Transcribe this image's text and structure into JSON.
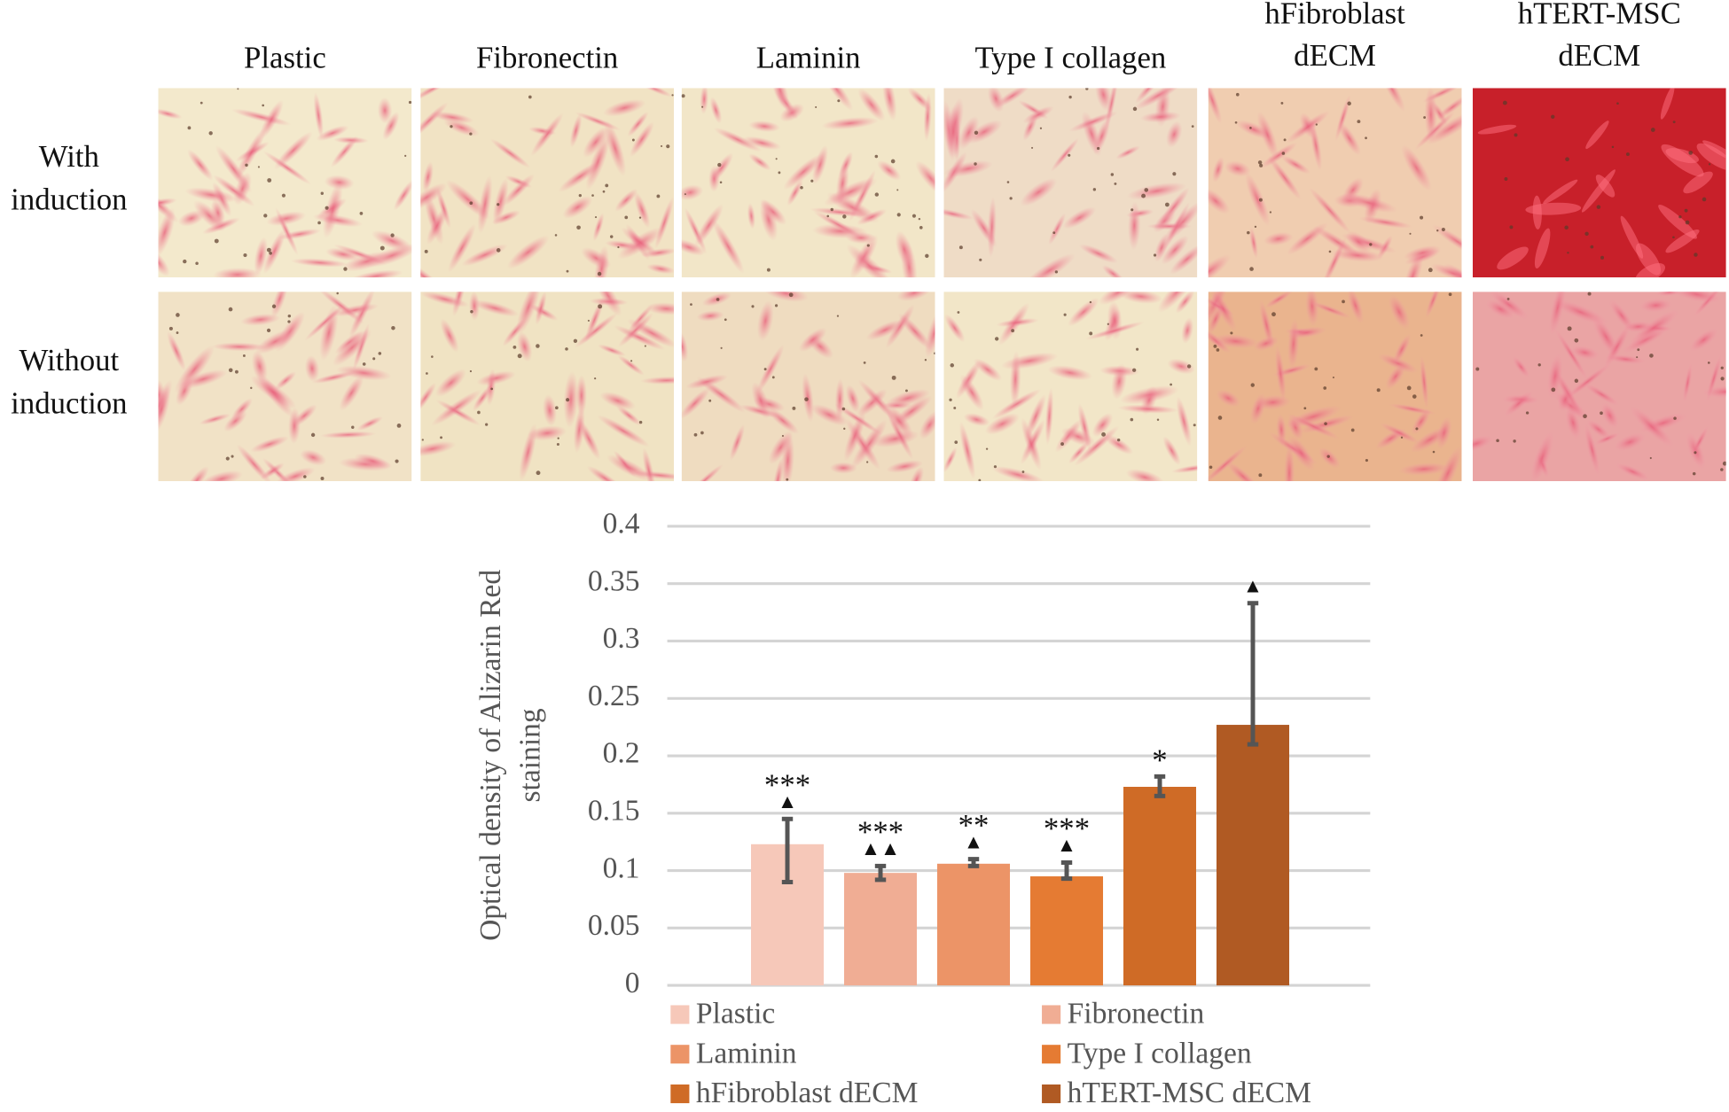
{
  "panels": {
    "columns": [
      [
        "Plastic"
      ],
      [
        "Fibronectin"
      ],
      [
        "Laminin"
      ],
      [
        "Type I collagen"
      ],
      [
        "hFibroblast",
        "dECM"
      ],
      [
        "hTERT-MSC",
        "dECM"
      ]
    ],
    "rows": [
      [
        "With",
        "induction"
      ],
      [
        "Without",
        "induction"
      ]
    ]
  },
  "chart_data": {
    "type": "bar",
    "categories": [
      "Plastic",
      "Fibronectin",
      "Laminin",
      "Type I collagen",
      "hFibroblast dECM",
      "hTERT-MSC dECM"
    ],
    "values": [
      0.123,
      0.098,
      0.106,
      0.095,
      0.173,
      0.227
    ],
    "error_minus": [
      0.033,
      0.006,
      0.002,
      0.002,
      0.008,
      0.017
    ],
    "error_plus": [
      0.022,
      0.006,
      0.004,
      0.012,
      0.009,
      0.106
    ],
    "colors": [
      "#f6c8b9",
      "#f0ad94",
      "#ec9467",
      "#e57b33",
      "#cf6b26",
      "#b05a23"
    ],
    "annotations": [
      {
        "stars": "***",
        "triangles": "▲"
      },
      {
        "stars": "***",
        "triangles": "▲▲"
      },
      {
        "stars": "**",
        "triangles": "▲"
      },
      {
        "stars": "***",
        "triangles": "▲"
      },
      {
        "stars": "*"
      },
      {
        "triangles": "▲"
      }
    ],
    "y_label": [
      "Optical density  of Alizarin Red",
      "staining"
    ],
    "ylim": [
      0,
      0.4
    ],
    "yticks": [
      0,
      0.05,
      0.1,
      0.15,
      0.2,
      0.25,
      0.3,
      0.35,
      0.4
    ],
    "grid": true,
    "legend": "bottom"
  }
}
